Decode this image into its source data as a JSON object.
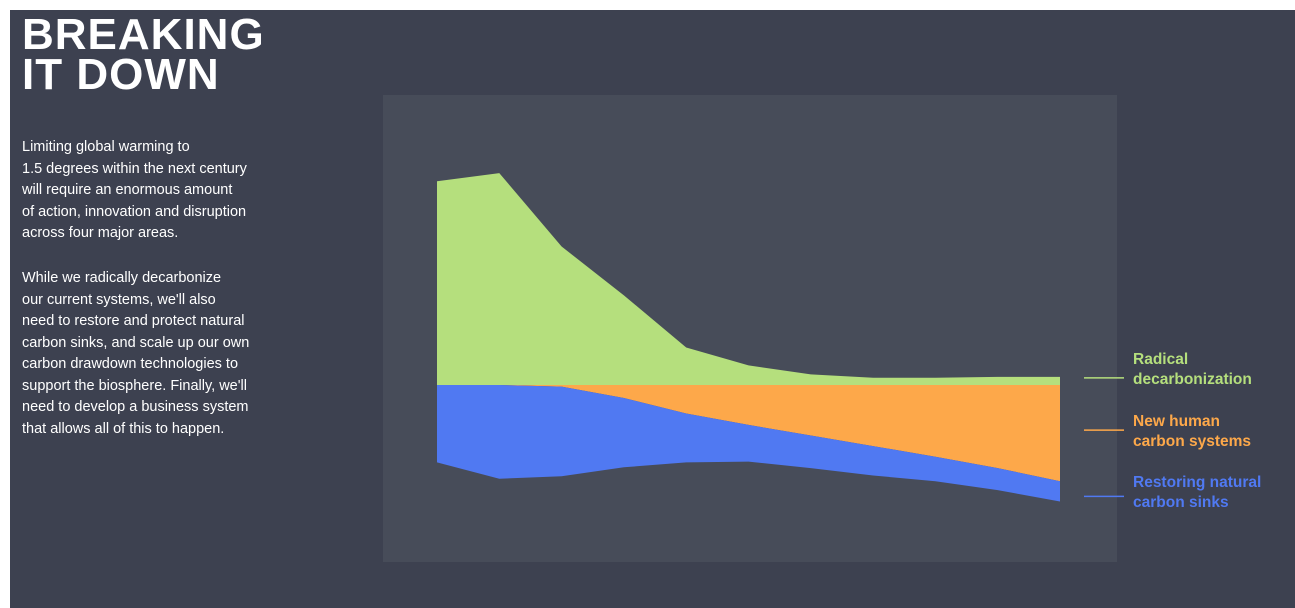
{
  "title_lines": [
    "BREAKING",
    "IT DOWN"
  ],
  "intro": {
    "paragraph1_lines": [
      "Limiting global warming to",
      "1.5 degrees within the next century",
      "will require an enormous amount",
      "of action, innovation and disruption",
      "across four major areas."
    ],
    "paragraph2_lines": [
      "While we radically decarbonize",
      "our current systems, we'll also",
      "need to restore and protect natural",
      "carbon sinks, and scale up our own",
      "carbon drawdown technologies to",
      "support the biosphere. Finally, we'll",
      "need to develop a business system",
      "that allows all of this to happen."
    ]
  },
  "colors": {
    "background": "#3d4150",
    "plot_background": "#474c59",
    "radical": "#b5df7d",
    "new_human": "#fda84a",
    "restoring": "#5079f2"
  },
  "chart_data": {
    "type": "area",
    "x": [
      0,
      1,
      2,
      3,
      4,
      5,
      6,
      7,
      8,
      9,
      10
    ],
    "ylim": [
      -1.4,
      2.6
    ],
    "series": [
      {
        "name": "Radical decarbonization",
        "color": "#b5df7d",
        "legend_lines": [
          "Radical",
          "decarbonization"
        ],
        "baseline": "zero",
        "values": [
          2.5,
          2.6,
          1.7,
          1.1,
          0.46,
          0.24,
          0.13,
          0.09,
          0.09,
          0.1,
          0.1
        ]
      },
      {
        "name": "New human carbon systems",
        "color": "#fda84a",
        "legend_lines": [
          "New human",
          "carbon systems"
        ],
        "baseline": "zero",
        "values": [
          0,
          0,
          0.02,
          0.16,
          0.35,
          0.49,
          0.62,
          0.75,
          0.88,
          1.02,
          1.18
        ]
      },
      {
        "name": "Restoring natural carbon sinks",
        "color": "#5079f2",
        "legend_lines": [
          "Restoring natural",
          "carbon sinks"
        ],
        "baseline": "stacked",
        "values": [
          0.95,
          1.15,
          1.1,
          0.85,
          0.6,
          0.45,
          0.4,
          0.36,
          0.3,
          0.27,
          0.25
        ]
      }
    ]
  }
}
